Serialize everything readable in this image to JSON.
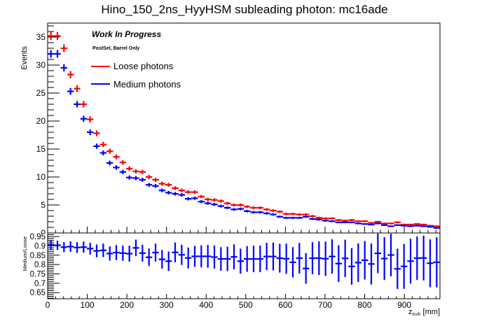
{
  "title": "Hino_150_2ns_HyyHSM subleading photon: mc16ade",
  "chart_data": [
    {
      "type": "scatter",
      "panel": "main",
      "title": "Hino_150_2ns_HyyHSM subleading photon: mc16ade",
      "xlabel": "z_truth [mm]",
      "xlabel_main": "z",
      "xlabel_sub": "truth",
      "xlabel_unit": " [mm]",
      "ylabel": "Events",
      "xlim": [
        0,
        990
      ],
      "ylim": [
        0,
        37.5
      ],
      "x_ticks": [
        0,
        100,
        200,
        300,
        400,
        500,
        600,
        700,
        800,
        900
      ],
      "y_ticks": [
        5,
        10,
        15,
        20,
        25,
        30,
        35
      ],
      "bin_width": 16.5,
      "grid": false,
      "legend_position": "top-left",
      "annotations": [
        "Work In Progress",
        "PostSel, Barrel Only"
      ],
      "series": [
        {
          "name": "Loose photons",
          "color": "#ff0000",
          "values": [
            35.2,
            35.2,
            33.0,
            28.3,
            25.8,
            23.0,
            20.3,
            17.8,
            15.8,
            14.6,
            13.6,
            12.6,
            11.5,
            11.0,
            10.9,
            10.0,
            9.5,
            8.8,
            8.6,
            8.0,
            7.6,
            7.3,
            7.3,
            6.5,
            6.0,
            5.9,
            5.7,
            5.3,
            5.0,
            5.0,
            4.7,
            4.5,
            4.5,
            4.2,
            4.0,
            3.8,
            3.4,
            3.4,
            3.3,
            3.3,
            3.0,
            2.7,
            2.6,
            2.6,
            2.3,
            2.2,
            2.3,
            2.1,
            2.1,
            1.8,
            2.0,
            1.7,
            1.7,
            1.9,
            1.5,
            1.5,
            1.6,
            1.5,
            1.3,
            1.2
          ]
        },
        {
          "name": "Medium photons",
          "color": "#0000ff",
          "values": [
            32.0,
            32.0,
            29.5,
            25.3,
            23.0,
            20.4,
            18.0,
            15.5,
            14.3,
            12.5,
            11.7,
            10.9,
            9.9,
            9.8,
            9.5,
            8.6,
            8.4,
            7.6,
            7.2,
            7.0,
            6.8,
            6.1,
            6.2,
            5.6,
            5.3,
            5.1,
            4.8,
            4.5,
            4.2,
            4.3,
            3.9,
            3.7,
            3.7,
            3.5,
            3.3,
            2.9,
            2.7,
            2.7,
            2.7,
            2.9,
            2.5,
            2.4,
            2.2,
            2.1,
            1.9,
            1.9,
            1.9,
            1.7,
            1.6,
            1.5,
            1.7,
            1.4,
            1.2,
            1.4,
            1.3,
            1.2,
            1.3,
            1.2,
            1.1,
            0.9
          ]
        }
      ]
    },
    {
      "type": "scatter",
      "panel": "ratio",
      "xlabel": "z_truth [mm]",
      "ylabel": "Medium/Loose",
      "xlim": [
        0,
        990
      ],
      "ylim": [
        0.617,
        0.969
      ],
      "x_ticks": [
        0,
        100,
        200,
        300,
        400,
        500,
        600,
        700,
        800,
        900
      ],
      "y_ticks": [
        0.65,
        0.7,
        0.75,
        0.8,
        0.85,
        0.9,
        0.95
      ],
      "y_tick_labels": [
        "0.65",
        "0.7",
        "0.75",
        "0.8",
        "0.85",
        "0.9",
        "0.95"
      ],
      "bin_width": 16.5,
      "grid": false,
      "series": [
        {
          "name": "Medium/Loose",
          "color": "#0000ff",
          "values": [
            0.903,
            0.903,
            0.893,
            0.896,
            0.891,
            0.893,
            0.885,
            0.873,
            0.876,
            0.859,
            0.864,
            0.861,
            0.858,
            0.889,
            0.861,
            0.839,
            0.864,
            0.828,
            0.818,
            0.865,
            0.852,
            0.835,
            0.844,
            0.844,
            0.844,
            0.84,
            0.83,
            0.83,
            0.841,
            0.818,
            0.83,
            0.83,
            0.83,
            0.843,
            0.843,
            0.834,
            0.831,
            0.812,
            0.834,
            0.779,
            0.834,
            0.834,
            0.831,
            0.843,
            0.805,
            0.833,
            0.79,
            0.81,
            0.823,
            0.803,
            0.86,
            0.832,
            0.851,
            0.777,
            0.79,
            0.818,
            0.834,
            0.835,
            0.807,
            0.812
          ],
          "errors": [
            0.025,
            0.025,
            0.027,
            0.028,
            0.029,
            0.03,
            0.032,
            0.034,
            0.036,
            0.038,
            0.04,
            0.041,
            0.043,
            0.044,
            0.045,
            0.047,
            0.048,
            0.05,
            0.052,
            0.053,
            0.054,
            0.056,
            0.056,
            0.059,
            0.061,
            0.062,
            0.063,
            0.065,
            0.067,
            0.067,
            0.069,
            0.071,
            0.071,
            0.073,
            0.075,
            0.077,
            0.081,
            0.081,
            0.082,
            0.082,
            0.086,
            0.09,
            0.092,
            0.092,
            0.098,
            0.1,
            0.098,
            0.103,
            0.103,
            0.11,
            0.106,
            0.114,
            0.114,
            0.108,
            0.12,
            0.12,
            0.116,
            0.12,
            0.128,
            0.134
          ]
        }
      ]
    }
  ]
}
